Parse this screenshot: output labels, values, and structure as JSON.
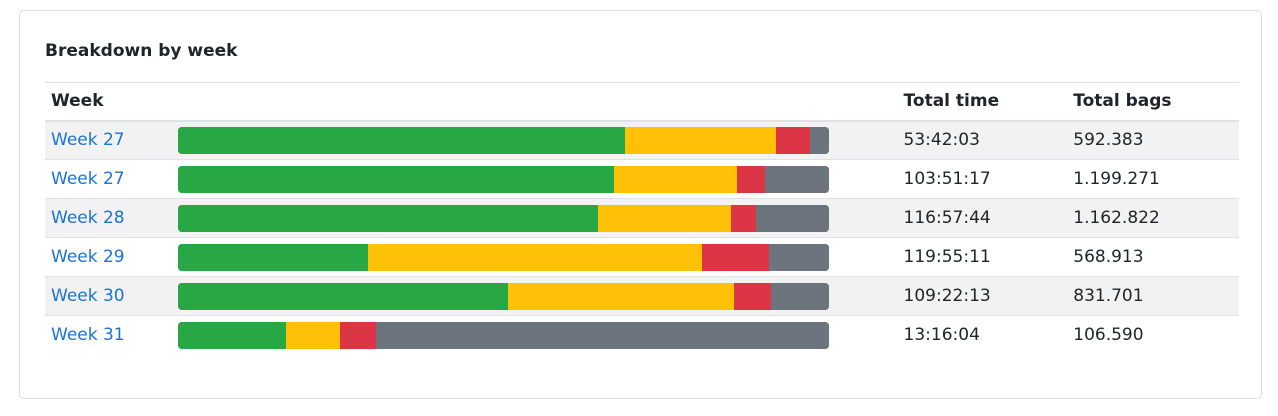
{
  "card": {
    "title": "Breakdown by week"
  },
  "table": {
    "headers": {
      "week": "Week",
      "bar": "",
      "total_time": "Total time",
      "total_bags": "Total bags"
    },
    "colors": {
      "green": "#28a745",
      "yellow": "#ffc107",
      "red": "#dc3545",
      "grey": "#6c757d"
    },
    "rows": [
      {
        "week": "Week 27",
        "total_time": "53:42:03",
        "total_bags": "592.383",
        "segments": [
          0.686,
          0.232,
          0.052,
          0.03
        ]
      },
      {
        "week": "Week 27",
        "total_time": "103:51:17",
        "total_bags": "1.199.271",
        "segments": [
          0.669,
          0.189,
          0.043,
          0.099
        ]
      },
      {
        "week": "Week 28",
        "total_time": "116:57:44",
        "total_bags": "1.162.822",
        "segments": [
          0.645,
          0.204,
          0.038,
          0.113
        ]
      },
      {
        "week": "Week 29",
        "total_time": "119:55:11",
        "total_bags": "568.913",
        "segments": [
          0.292,
          0.513,
          0.103,
          0.092
        ]
      },
      {
        "week": "Week 30",
        "total_time": "109:22:13",
        "total_bags": "831.701",
        "segments": [
          0.507,
          0.347,
          0.057,
          0.089
        ]
      },
      {
        "week": "Week 31",
        "total_time": "13:16:04",
        "total_bags": "106.590",
        "segments": [
          0.166,
          0.083,
          0.054,
          0.697
        ]
      }
    ]
  }
}
